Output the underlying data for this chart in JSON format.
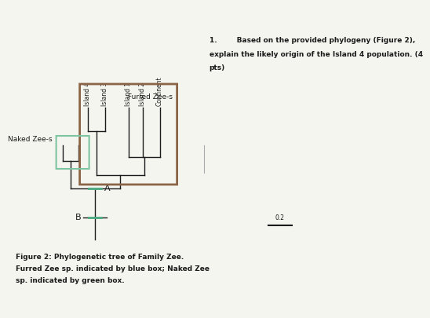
{
  "fig_caption_line1": "Figure 2: Phylogenetic tree of Family Zee.",
  "fig_caption_line2": "Furred Zee sp. indicated by blue box; Naked Zee",
  "fig_caption_line3": "sp. indicated by green box.",
  "question_text_line1": "1.        Based on the provided phylogeny (Figure 2),",
  "question_text_line2": "explain the likely origin of the Island 4 population. (4",
  "question_text_line3": "pts)",
  "label_island4": "Island 4",
  "label_island3": "Island 3",
  "label_island1": "Island 1",
  "label_island2": "Island 2",
  "label_continent": "Continent",
  "label_furred": "Furred Zee-s",
  "label_naked": "Naked Zee-s",
  "label_A": "A",
  "label_B": "B",
  "scale_label": "0.2",
  "brown_box_color": "#8B6347",
  "green_box_color": "#7DC4A0",
  "bg_color": "#F5F5F0",
  "tree_color": "#1A1A1A",
  "tick_color": "#4AAA80",
  "sep_line_color": "#AAAAAA"
}
